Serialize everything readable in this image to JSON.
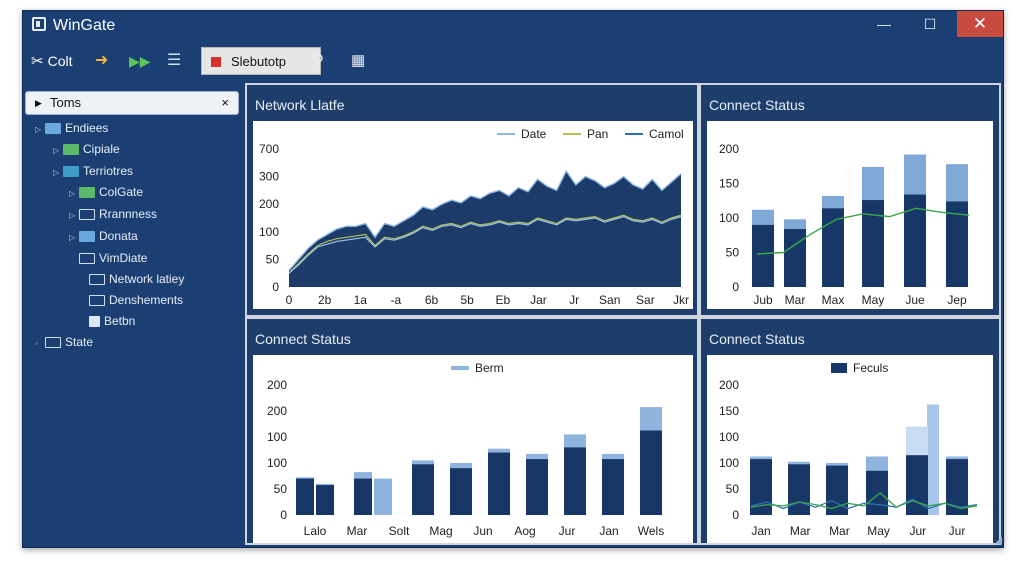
{
  "window": {
    "title": "WinGate",
    "minimize": "—",
    "maximize": "☐",
    "close": "✕"
  },
  "toolbar": {
    "cut_label": "Colt",
    "select_label": "Slebutotp",
    "icons": [
      "scissors-icon",
      "arrow-icon",
      "play-icon",
      "list-icon",
      "pin-icon",
      "grid-icon"
    ]
  },
  "sidebar": {
    "search": {
      "value": "Toms",
      "clear": "×"
    },
    "items": [
      {
        "label": "Endiees"
      },
      {
        "label": "Cipiale"
      },
      {
        "label": "Terriotres"
      },
      {
        "label": "ColGate"
      },
      {
        "label": "Rrannness"
      },
      {
        "label": "Donata"
      },
      {
        "label": "VimDiate"
      },
      {
        "label": "Network latiey"
      },
      {
        "label": "Denshements"
      },
      {
        "label": "Betbn"
      },
      {
        "label": "State"
      }
    ]
  },
  "panels": {
    "p1": {
      "title": "Network Llatfe"
    },
    "p2": {
      "title": "Connect Status"
    },
    "p3": {
      "title": "Connect Status"
    },
    "p4": {
      "title": "Connect Status"
    }
  },
  "chart_data": [
    {
      "type": "area",
      "title": "Network Llatfe",
      "y_ticks": [
        "700",
        "300",
        "200",
        "100",
        "50",
        "0"
      ],
      "x_ticks": [
        "0",
        "2b",
        "1a",
        "-a",
        "6b",
        "5b",
        "Eb",
        "Jar",
        "Jr",
        "San",
        "Sar",
        "Jkr"
      ],
      "legend": [
        "Date",
        "Pan",
        "Camol"
      ],
      "colors": {
        "area": "#1d3b68",
        "series1": "#8ab6e0",
        "series2": "#b4c15a",
        "series3": "#2f6fb6"
      },
      "series": [
        {
          "name": "Date",
          "values": [
            0.12,
            0.2,
            0.28,
            0.34,
            0.38,
            0.42,
            0.44,
            0.44,
            0.46,
            0.36,
            0.46,
            0.44,
            0.48,
            0.52,
            0.58,
            0.56,
            0.6,
            0.63,
            0.61,
            0.66,
            0.64,
            0.68,
            0.7,
            0.66,
            0.72,
            0.69,
            0.78,
            0.73,
            0.7,
            0.84,
            0.74,
            0.8,
            0.77,
            0.72,
            0.75,
            0.8,
            0.74,
            0.71,
            0.78,
            0.7,
            0.76,
            0.82
          ]
        },
        {
          "name": "Pan",
          "values": [
            0.1,
            0.17,
            0.24,
            0.3,
            0.33,
            0.35,
            0.36,
            0.37,
            0.38,
            0.3,
            0.36,
            0.35,
            0.37,
            0.4,
            0.44,
            0.42,
            0.45,
            0.46,
            0.44,
            0.47,
            0.45,
            0.46,
            0.48,
            0.46,
            0.47,
            0.46,
            0.5,
            0.48,
            0.46,
            0.5,
            0.49,
            0.5,
            0.51,
            0.48,
            0.5,
            0.52,
            0.49,
            0.48,
            0.5,
            0.47,
            0.5,
            0.52
          ]
        },
        {
          "name": "Camol",
          "values": [
            0.1,
            0.16,
            0.23,
            0.29,
            0.31,
            0.33,
            0.34,
            0.35,
            0.36,
            0.29,
            0.35,
            0.34,
            0.36,
            0.39,
            0.43,
            0.41,
            0.44,
            0.45,
            0.43,
            0.46,
            0.44,
            0.45,
            0.47,
            0.45,
            0.46,
            0.45,
            0.49,
            0.47,
            0.45,
            0.49,
            0.48,
            0.49,
            0.5,
            0.47,
            0.49,
            0.51,
            0.48,
            0.47,
            0.49,
            0.46,
            0.49,
            0.51
          ]
        }
      ]
    },
    {
      "type": "bar",
      "title": "Connect Status",
      "y_ticks": [
        "200",
        "150",
        "100",
        "50",
        "0"
      ],
      "categories": [
        "Jub",
        "Mar",
        "Max",
        "May",
        "Jue",
        "Jep"
      ],
      "colors": {
        "dark": "#173866",
        "light": "#7fa8d6",
        "line": "#3aa64a"
      },
      "dark": [
        0.45,
        0.42,
        0.57,
        0.63,
        0.67,
        0.62
      ],
      "light": [
        0.56,
        0.49,
        0.66,
        0.87,
        0.96,
        0.89
      ],
      "line": [
        0.24,
        0.25,
        0.38,
        0.49,
        0.53,
        0.51,
        0.57,
        0.54,
        0.52
      ]
    },
    {
      "type": "bar",
      "title": "Connect Status",
      "legend": [
        "Berm"
      ],
      "y_ticks": [
        "200",
        "200",
        "100",
        "100",
        "50",
        "0"
      ],
      "x_ticks": [
        "Lalo",
        "Mar",
        "Solt",
        "Mag",
        "Jun",
        "Aog",
        "Jur",
        "Jan",
        "Wels"
      ],
      "colors": {
        "dark": "#173866",
        "light": "#8fb4dd"
      },
      "groups": [
        {
          "dark": [
            0.28,
            0.23
          ],
          "light": [
            0.29,
            0.24
          ]
        },
        {
          "dark": [
            0.28
          ],
          "light": [
            0.33,
            0.28
          ]
        },
        {
          "dark": [
            0.39
          ],
          "light": [
            0.42
          ]
        },
        {
          "dark": [
            0.36
          ],
          "light": [
            0.4
          ]
        },
        {
          "dark": [
            0.48
          ],
          "light": [
            0.51
          ]
        },
        {
          "dark": [
            0.43
          ],
          "light": [
            0.47
          ]
        },
        {
          "dark": [
            0.52
          ],
          "light": [
            0.62
          ]
        },
        {
          "dark": [
            0.43
          ],
          "light": [
            0.47
          ]
        },
        {
          "dark": [
            0.65
          ],
          "light": [
            0.83
          ]
        }
      ]
    },
    {
      "type": "bar",
      "title": "Connect Status",
      "legend": [
        "Feculs"
      ],
      "y_ticks": [
        "200",
        "150",
        "100",
        "100",
        "50",
        "0"
      ],
      "x_ticks": [
        "Jan",
        "Mar",
        "Mar",
        "May",
        "Jur",
        "Jur"
      ],
      "colors": {
        "dark": "#173866",
        "light": "#8fb4dd",
        "lineA": "#2f6fb6",
        "lineB": "#3aa64a"
      },
      "bars": [
        {
          "dark": 0.43,
          "light": 0.45
        },
        {
          "dark": 0.39,
          "light": 0.41
        },
        {
          "dark": 0.38,
          "light": 0.4
        },
        {
          "dark": 0.34,
          "light": 0.45
        },
        {
          "dark": 0.46,
          "light": 0.68,
          "tall": 0.85
        },
        {
          "dark": 0.43,
          "light": 0.45
        }
      ],
      "lineA": [
        0.07,
        0.1,
        0.05,
        0.1,
        0.06,
        0.11,
        0.05,
        0.09,
        0.08,
        0.06,
        0.12,
        0.05,
        0.09,
        0.06,
        0.08
      ],
      "lineB": [
        0.06,
        0.08,
        0.07,
        0.1,
        0.08,
        0.05,
        0.09,
        0.07,
        0.17,
        0.06,
        0.11,
        0.07,
        0.09,
        0.05,
        0.07
      ]
    }
  ]
}
